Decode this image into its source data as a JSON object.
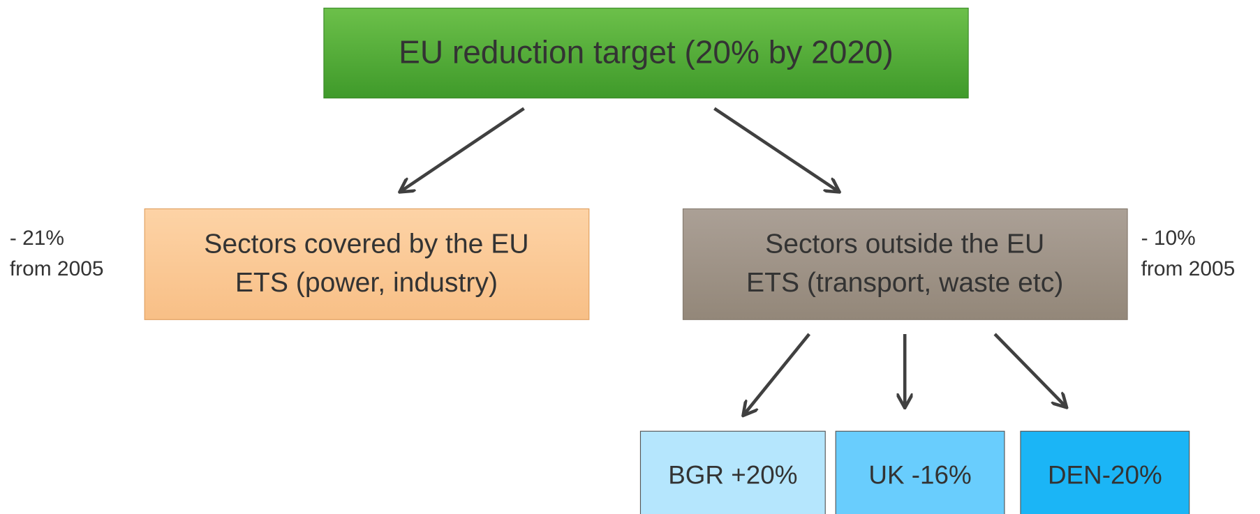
{
  "title": {
    "lines": [
      "EU reduction target (20% by 2020)"
    ]
  },
  "nodes": [
    {
      "lines": [
        "Sectors covered by the EU",
        "ETS (power, industry)"
      ],
      "note": [
        "- 21%",
        "from 2005"
      ]
    },
    {
      "lines": [
        "Sectors outside the EU",
        "ETS (transport, waste etc)"
      ],
      "note": [
        "- 10%",
        "from 2005"
      ]
    }
  ],
  "countries": [
    {
      "label": "BGR +20%"
    },
    {
      "label": "UK -16%"
    },
    {
      "label": "DEN-20%"
    }
  ]
}
